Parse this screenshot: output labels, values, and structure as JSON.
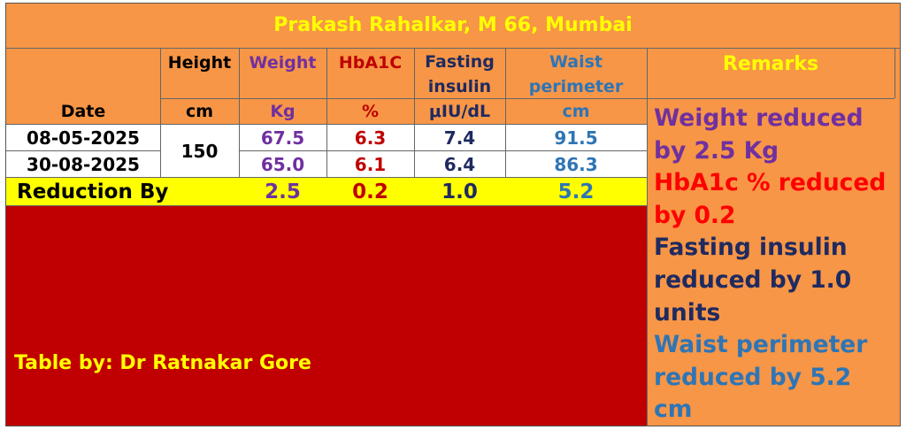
{
  "title": "Prakash Rahalkar, M 66, Mumbai",
  "headers": {
    "date": "Date",
    "height": "Height",
    "weight": "Weight",
    "hba1c": "HbA1C",
    "fasting_line1": "Fasting",
    "fasting_line2": "insulin",
    "waist_line1": "Waist",
    "waist_line2": "perimeter",
    "remarks": "Remarks"
  },
  "units": {
    "height": "cm",
    "weight": "Kg",
    "hba1c": "%",
    "fasting": "μIU/dL",
    "waist": "cm"
  },
  "rows": [
    {
      "date": "08-05-2025",
      "weight": "67.5",
      "hba1c": "6.3",
      "fasting": "7.4",
      "waist": "91.5"
    },
    {
      "date": "30-08-2025",
      "weight": "65.0",
      "hba1c": "6.1",
      "fasting": "6.4",
      "waist": "86.3"
    }
  ],
  "height_value": "150",
  "reduction": {
    "label": "Reduction By",
    "weight": "2.5",
    "hba1c": "0.2",
    "fasting": "1.0",
    "waist": "5.2"
  },
  "credit": "Table by: Dr Ratnakar Gore",
  "remarks": [
    {
      "text": "Weight reduced by 2.5 Kg",
      "color": "#7030a0"
    },
    {
      "text": "HbA1c % reduced by 0.2",
      "color": "#ff0000"
    },
    {
      "text": "Fasting insulin reduced by 1.0 units",
      "color": "#1f2a60"
    },
    {
      "text": "Waist perimeter reduced by 5.2 cm",
      "color": "#2e75b6"
    }
  ],
  "colors": {
    "header_bg": "#f79646",
    "title_text": "#ffff00",
    "reduction_bg": "#ffff00",
    "lower_panel_bg": "#c00000",
    "credit_text": "#ffff00"
  }
}
